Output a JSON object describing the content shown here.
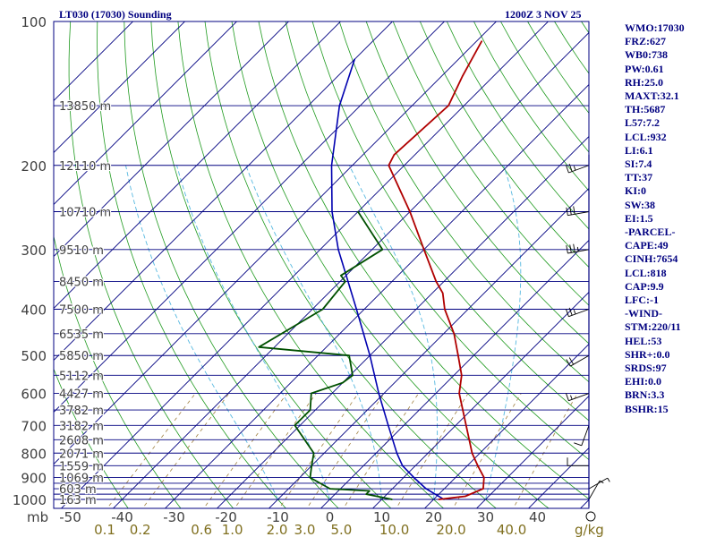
{
  "header": {
    "station": "LT030 (17030) Sounding",
    "time": "1200Z  3 NOV 25"
  },
  "indices": [
    "WMO:17030",
    "FRZ:627",
    "WB0:738",
    "PW:0.61",
    "RH:25.0",
    "MAXT:32.1",
    "TH:5687",
    "L57:7.2",
    "LCL:932",
    "LI:6.1",
    "SI:7.4",
    "TT:37",
    "KI:0",
    "SW:38",
    "EI:1.5",
    "-PARCEL-",
    "CAPE:49",
    "CINH:7654",
    "LCL:818",
    "CAP:9.9",
    "LFC:-1",
    "-WIND-",
    "STM:220/11",
    "HEL:53",
    "SHR+:0.0",
    "SRDS:97",
    "EHI:0.0",
    "BRN:3.3",
    "BSHR:15"
  ],
  "colors": {
    "frame": "#000080",
    "isobar": "#000080",
    "isotherm": "#000080",
    "dry_adiabat": "#1f9a1f",
    "moist_adiabat": "#56b8e0",
    "mixing_ratio": "#a08040",
    "temperature": "#b00000",
    "dewpoint": "#005000",
    "parcel": "#0000b0",
    "axis_text": "#404040",
    "mixing_text": "#807020"
  },
  "chart_data": {
    "type": "skew-t log-p sounding",
    "title": "LT030 (17030) Sounding",
    "pressure_axis_label": "mb",
    "pressure_ticks": [
      "100",
      "200",
      "300",
      "400",
      "500",
      "600",
      "700",
      "800",
      "900",
      "1000"
    ],
    "pressure_tick_values": [
      100,
      200,
      300,
      400,
      500,
      600,
      700,
      800,
      900,
      1000
    ],
    "isobars_mb": [
      150,
      200,
      250,
      300,
      350,
      400,
      450,
      500,
      550,
      600,
      650,
      700,
      750,
      800,
      850,
      900,
      925,
      950,
      975,
      1000
    ],
    "height_labels": [
      "13850 m",
      "12110 m",
      "10710 m",
      "9510 m",
      "8450 m",
      "7500 m",
      "6535 m",
      "5850 m",
      "5112 m",
      "4427 m",
      "3782 m",
      "3182 m",
      "2608 m",
      "2071 m",
      "1559 m",
      "1069 m",
      "603 m",
      "163 m"
    ],
    "height_label_pressures": [
      150,
      200,
      250,
      300,
      350,
      400,
      450,
      500,
      550,
      600,
      650,
      700,
      750,
      800,
      850,
      900,
      950,
      1000
    ],
    "temperature_ticks": [
      "-50",
      "-40",
      "-30",
      "-20",
      "-10",
      "0",
      "10",
      "20",
      "30",
      "40"
    ],
    "temperature_tick_values": [
      -50,
      -40,
      -30,
      -20,
      -10,
      0,
      10,
      20,
      30,
      40
    ],
    "mixing_ratio_label": "g/kg",
    "mixing_ratio_ticks": [
      "0.1",
      "0.2",
      "0.6",
      "1.0",
      "2.0",
      "3.0",
      "5.0",
      "10.0",
      "20.0",
      "40.0"
    ],
    "mixing_ratio_tick_values": [
      0.1,
      0.2,
      0.6,
      1.0,
      2.0,
      3.0,
      5.0,
      10.0,
      20.0,
      40.0
    ],
    "temperature_profile": [
      {
        "p": 1000,
        "t": 21.0
      },
      {
        "p": 985,
        "t": 25.5
      },
      {
        "p": 950,
        "t": 27.5
      },
      {
        "p": 900,
        "t": 25.5
      },
      {
        "p": 850,
        "t": 22.0
      },
      {
        "p": 800,
        "t": 18.5
      },
      {
        "p": 700,
        "t": 12.0
      },
      {
        "p": 600,
        "t": 4.5
      },
      {
        "p": 550,
        "t": 1.5
      },
      {
        "p": 500,
        "t": -3.0
      },
      {
        "p": 450,
        "t": -8.0
      },
      {
        "p": 400,
        "t": -14.5
      },
      {
        "p": 370,
        "t": -18.0
      },
      {
        "p": 350,
        "t": -21.5
      },
      {
        "p": 300,
        "t": -30.0
      },
      {
        "p": 250,
        "t": -40.0
      },
      {
        "p": 200,
        "t": -53.0
      },
      {
        "p": 190,
        "t": -54.0
      },
      {
        "p": 150,
        "t": -53.0
      },
      {
        "p": 130,
        "t": -56.0
      },
      {
        "p": 110,
        "t": -59.0
      }
    ],
    "dewpoint_profile": [
      {
        "p": 1000,
        "t": 12.0
      },
      {
        "p": 975,
        "t": 6.0
      },
      {
        "p": 960,
        "t": 6.0
      },
      {
        "p": 950,
        "t": -2.0
      },
      {
        "p": 900,
        "t": -8.0
      },
      {
        "p": 850,
        "t": -10.0
      },
      {
        "p": 800,
        "t": -12.0
      },
      {
        "p": 700,
        "t": -21.0
      },
      {
        "p": 650,
        "t": -21.0
      },
      {
        "p": 600,
        "t": -24.0
      },
      {
        "p": 570,
        "t": -20.0
      },
      {
        "p": 550,
        "t": -19.5
      },
      {
        "p": 500,
        "t": -24.0
      },
      {
        "p": 480,
        "t": -43.0
      },
      {
        "p": 400,
        "t": -38.0
      },
      {
        "p": 350,
        "t": -39.0
      },
      {
        "p": 340,
        "t": -41.0
      },
      {
        "p": 300,
        "t": -38.0
      },
      {
        "p": 250,
        "t": -50.0
      }
    ],
    "parcel_profile": [
      {
        "p": 1000,
        "t": 22.0
      },
      {
        "p": 950,
        "t": 16.5
      },
      {
        "p": 900,
        "t": 12.0
      },
      {
        "p": 850,
        "t": 7.5
      },
      {
        "p": 800,
        "t": 4.0
      },
      {
        "p": 700,
        "t": -3.0
      },
      {
        "p": 600,
        "t": -11.0
      },
      {
        "p": 500,
        "t": -20.0
      },
      {
        "p": 400,
        "t": -31.5
      },
      {
        "p": 300,
        "t": -46.5
      },
      {
        "p": 250,
        "t": -55.0
      },
      {
        "p": 200,
        "t": -64.0
      },
      {
        "p": 150,
        "t": -74.0
      },
      {
        "p": 120,
        "t": -80.0
      }
    ],
    "wind_barbs": [
      {
        "p": 1000,
        "dir": 30,
        "speed": 5
      },
      {
        "p": 950,
        "dir": 60,
        "speed": 5
      },
      {
        "p": 850,
        "dir": 270,
        "speed": 10
      },
      {
        "p": 700,
        "dir": 200,
        "speed": 10
      },
      {
        "p": 600,
        "dir": 250,
        "speed": 15
      },
      {
        "p": 500,
        "dir": 240,
        "speed": 20
      },
      {
        "p": 400,
        "dir": 250,
        "speed": 25
      },
      {
        "p": 300,
        "dir": 260,
        "speed": 35
      },
      {
        "p": 250,
        "dir": 260,
        "speed": 30
      },
      {
        "p": 200,
        "dir": 250,
        "speed": 25
      }
    ]
  }
}
